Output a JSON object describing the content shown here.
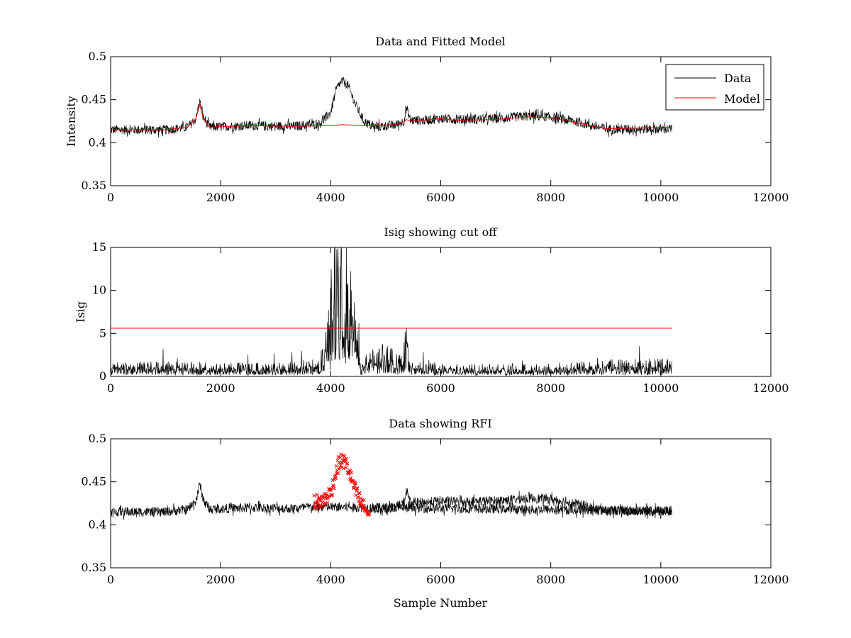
{
  "chart_data": [
    {
      "type": "line",
      "title": "Data and Fitted Model",
      "xlabel": "",
      "ylabel": "Intensity",
      "xlim": [
        0,
        12000
      ],
      "ylim": [
        0.35,
        0.5
      ],
      "xticks": [
        0,
        2000,
        4000,
        6000,
        8000,
        10000,
        12000
      ],
      "yticks": [
        0.35,
        0.4,
        0.45,
        0.5
      ],
      "xtick_labels": [
        "0",
        "2000",
        "4000",
        "6000",
        "8000",
        "10000",
        "12000"
      ],
      "ytick_labels": [
        "0.35",
        "0.4",
        "0.45",
        "0.5"
      ],
      "grid": false,
      "legend": {
        "position": "top-right",
        "entries": [
          "Data",
          "Model"
        ]
      },
      "series": [
        {
          "name": "Data",
          "color": "#000000",
          "style": "noisy-line",
          "x": [
            0,
            1000,
            1400,
            1550,
            1620,
            1680,
            1800,
            2500,
            3300,
            3800,
            4000,
            4100,
            4200,
            4300,
            4450,
            4600,
            4800,
            5200,
            5330,
            5380,
            5450,
            5700,
            6000,
            6300,
            7000,
            7600,
            8000,
            8500,
            9000,
            9500,
            10200
          ],
          "values": [
            0.415,
            0.415,
            0.418,
            0.428,
            0.448,
            0.43,
            0.418,
            0.42,
            0.419,
            0.422,
            0.435,
            0.462,
            0.472,
            0.468,
            0.445,
            0.425,
            0.418,
            0.421,
            0.425,
            0.44,
            0.426,
            0.426,
            0.428,
            0.427,
            0.428,
            0.431,
            0.43,
            0.424,
            0.416,
            0.416,
            0.416
          ],
          "noise_amplitude": 0.008
        },
        {
          "name": "Model",
          "color": "#ff0000",
          "style": "line",
          "x": [
            0,
            1000,
            1400,
            1550,
            1620,
            1680,
            1800,
            2500,
            3300,
            4000,
            4200,
            4600,
            5200,
            5330,
            5380,
            5450,
            5700,
            6000,
            6300,
            7000,
            7600,
            8000,
            8500,
            9000,
            9500,
            10200
          ],
          "values": [
            0.415,
            0.415,
            0.418,
            0.428,
            0.445,
            0.429,
            0.418,
            0.42,
            0.419,
            0.42,
            0.421,
            0.42,
            0.421,
            0.424,
            0.427,
            0.425,
            0.426,
            0.428,
            0.426,
            0.427,
            0.43,
            0.429,
            0.423,
            0.416,
            0.417,
            0.418
          ]
        }
      ]
    },
    {
      "type": "line",
      "title": "Isig showing cut off",
      "xlabel": "",
      "ylabel": "Isig",
      "xlim": [
        0,
        12000
      ],
      "ylim": [
        0,
        15
      ],
      "xticks": [
        0,
        2000,
        4000,
        6000,
        8000,
        10000,
        12000
      ],
      "yticks": [
        0,
        5,
        10,
        15
      ],
      "xtick_labels": [
        "0",
        "2000",
        "4000",
        "6000",
        "8000",
        "10000",
        "12000"
      ],
      "ytick_labels": [
        "0",
        "5",
        "10",
        "15"
      ],
      "grid": false,
      "series": [
        {
          "color": "#000000",
          "style": "abs-noise",
          "x": [
            0,
            1000,
            2000,
            3000,
            3800,
            3950,
            4050,
            4150,
            4250,
            4350,
            4450,
            4550,
            4700,
            5000,
            5330,
            5380,
            5420,
            6000,
            7000,
            8000,
            9000,
            10200
          ],
          "values": [
            1.0,
            1.0,
            0.9,
            0.9,
            1.2,
            4.0,
            9.5,
            11.0,
            11.2,
            9.0,
            4.0,
            0.8,
            1.8,
            2.2,
            1.2,
            3.5,
            1.0,
            0.9,
            0.8,
            0.8,
            1.1,
            1.2
          ],
          "noise_amplitude": 1.6
        },
        {
          "color": "#ff0000",
          "style": "line",
          "x": [
            0,
            10200
          ],
          "values": [
            5.6,
            5.6
          ]
        }
      ]
    },
    {
      "type": "line",
      "title": "Data showing RFI",
      "xlabel": "Sample Number",
      "ylabel": "",
      "xlim": [
        0,
        12000
      ],
      "ylim": [
        0.35,
        0.5
      ],
      "xticks": [
        0,
        2000,
        4000,
        6000,
        8000,
        10000,
        12000
      ],
      "yticks": [
        0.35,
        0.4,
        0.45,
        0.5
      ],
      "xtick_labels": [
        "0",
        "2000",
        "4000",
        "6000",
        "8000",
        "10000",
        "12000"
      ],
      "ytick_labels": [
        "0.35",
        "0.4",
        "0.45",
        "0.5"
      ],
      "grid": false,
      "series": [
        {
          "color": "#000000",
          "style": "noisy-line",
          "x": [
            0,
            1000,
            1400,
            1550,
            1620,
            1680,
            1800,
            2500,
            3300,
            3700,
            10200
          ],
          "values": [
            0.415,
            0.415,
            0.418,
            0.428,
            0.448,
            0.43,
            0.418,
            0.42,
            0.419,
            0.421,
            0.416
          ],
          "noise_amplitude": 0.008
        },
        {
          "color": "#ff0000",
          "style": "markers",
          "marker": "x",
          "x": [
            3700,
            3800,
            3900,
            4000,
            4050,
            4100,
            4150,
            4200,
            4250,
            4300,
            4350,
            4400,
            4450,
            4500,
            4550,
            4600,
            4650,
            4700
          ],
          "values": [
            0.426,
            0.427,
            0.43,
            0.438,
            0.448,
            0.462,
            0.472,
            0.474,
            0.473,
            0.468,
            0.458,
            0.449,
            0.44,
            0.432,
            0.426,
            0.421,
            0.416,
            0.412
          ],
          "noise_amplitude": 0.009
        },
        {
          "color": "#000000",
          "style": "noisy-line",
          "x": [
            4720,
            5200,
            5330,
            5380,
            5450,
            5700,
            6000,
            6300,
            7000,
            7600,
            8000,
            8500,
            9000,
            9500,
            10200
          ],
          "values": [
            0.418,
            0.421,
            0.425,
            0.44,
            0.426,
            0.426,
            0.428,
            0.427,
            0.428,
            0.431,
            0.43,
            0.424,
            0.416,
            0.416,
            0.416
          ],
          "noise_amplitude": 0.008
        }
      ]
    }
  ]
}
